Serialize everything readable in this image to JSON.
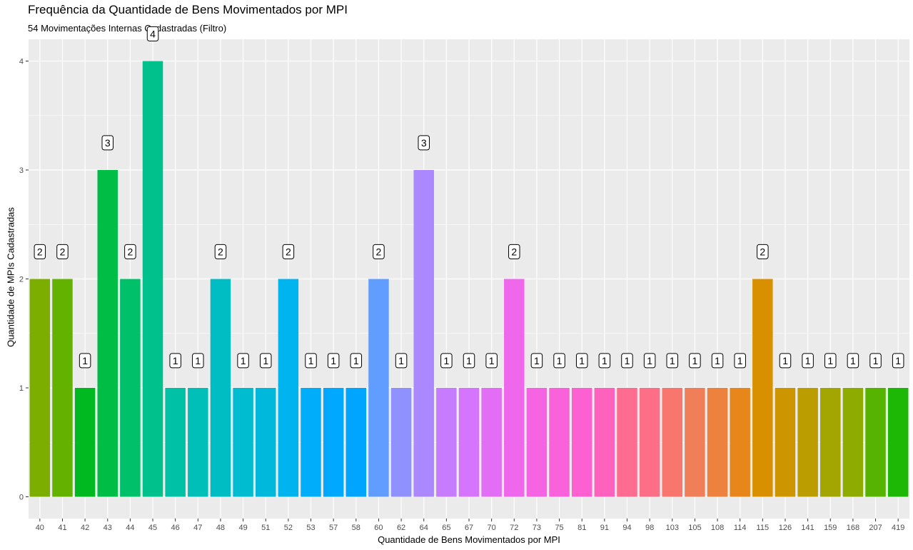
{
  "chart_data": {
    "type": "bar",
    "title": "Frequência da Quantidade de Bens Movimentados por MPI",
    "subtitle": "54  Movimentações Internas Cadastradas (Filtro)",
    "xlabel": "Quantidade de Bens Movimentados por MPI",
    "ylabel": "Quantidade de MPIs Cadastradas",
    "categories": [
      "40",
      "41",
      "42",
      "43",
      "44",
      "45",
      "46",
      "47",
      "48",
      "49",
      "51",
      "52",
      "53",
      "57",
      "58",
      "60",
      "62",
      "64",
      "65",
      "67",
      "70",
      "72",
      "73",
      "75",
      "81",
      "91",
      "94",
      "98",
      "103",
      "105",
      "108",
      "114",
      "115",
      "126",
      "141",
      "159",
      "168",
      "207",
      "419"
    ],
    "values": [
      2,
      2,
      1,
      3,
      2,
      4,
      1,
      1,
      2,
      1,
      1,
      2,
      1,
      1,
      1,
      2,
      1,
      3,
      1,
      1,
      1,
      2,
      1,
      1,
      1,
      1,
      1,
      1,
      1,
      1,
      1,
      1,
      2,
      1,
      1,
      1,
      1,
      1,
      1
    ],
    "ylim": [
      -0.2,
      4.2
    ],
    "yticks": [
      0,
      1,
      2,
      3,
      4
    ],
    "grid": true,
    "legend": "none",
    "colors": [
      "#7CAE00",
      "#64B200",
      "#00B81F",
      "#00BE45",
      "#00C06A",
      "#00C08B",
      "#00C0A5",
      "#00BFB8",
      "#00BDC4",
      "#00BCD0",
      "#00B8DB",
      "#00B4EF",
      "#00ADFA",
      "#00A9FF",
      "#00A5FF",
      "#619CFF",
      "#8F91FF",
      "#AC88FF",
      "#C77CFF",
      "#D575FE",
      "#E36EF6",
      "#EF67EB",
      "#F564E3",
      "#FA62DB",
      "#FD61D1",
      "#FF62BC",
      "#FF6C91",
      "#FD6F86",
      "#F8766D",
      "#F07F59",
      "#ED813E",
      "#E7861B",
      "#D89000",
      "#CD9600",
      "#BB9D00",
      "#A3A500",
      "#8EAB00",
      "#56B400",
      "#1DB705"
    ],
    "background": "#EBEBEB",
    "grid_color": "#FFFFFF"
  }
}
